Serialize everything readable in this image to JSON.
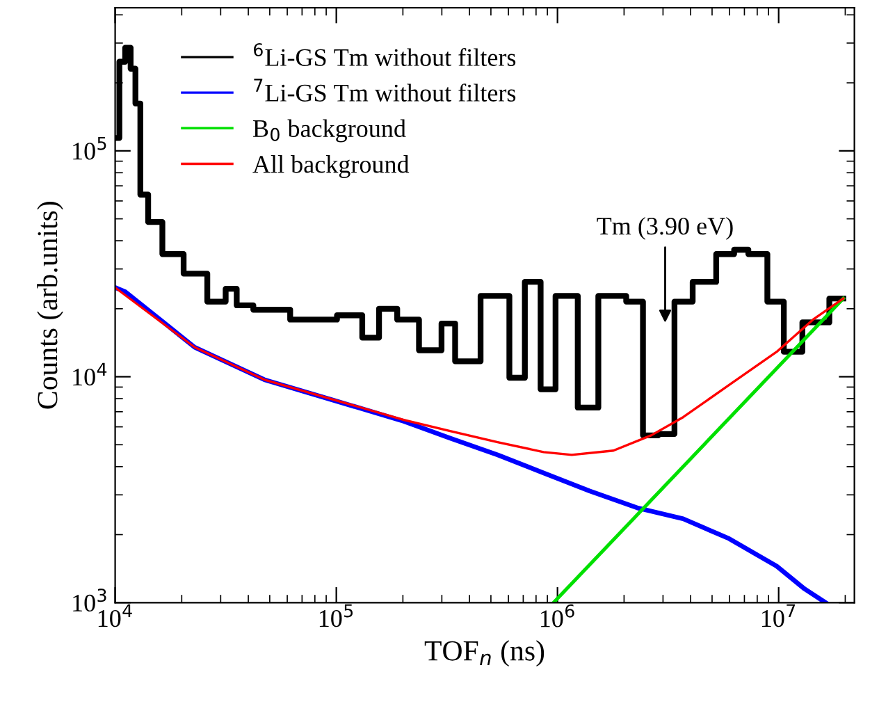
{
  "chart_data": {
    "type": "line",
    "xlabel": "TOF$_{n}$ (ns)",
    "ylabel": "Counts (arb.units)",
    "log": "xy",
    "grid": false,
    "legend": "top left",
    "marker": "none",
    "xlim": [
      10000,
      22000000
    ],
    "ylim": [
      1000,
      430000
    ],
    "xticks": [
      {
        "value": 10000,
        "label": "10$^{4}$"
      },
      {
        "value": 100000,
        "label": "10$^{5}$"
      },
      {
        "value": 1000000,
        "label": "10$^{6}$"
      },
      {
        "value": 10000000,
        "label": "10$^{7}$"
      }
    ],
    "yticks": [
      {
        "value": 1000,
        "label": "10$^{3}$"
      },
      {
        "value": 10000,
        "label": "10$^{4}$"
      },
      {
        "value": 100000,
        "label": "10$^{5}$"
      }
    ],
    "annotations": [
      "Tm (3.90 eV)"
    ],
    "series": [
      {
        "name": "$^{6}$Li-GS Tm without filters",
        "type": "step",
        "color": "#000000",
        "x": [
          10100,
          10800,
          11400,
          12100,
          12600,
          13400,
          14800,
          17900,
          22900,
          29300,
          33900,
          37000,
          47300,
          76400,
          125000,
          137000,
          175000,
          202000,
          271000,
          327000,
          362000,
          536000,
          676000,
          748000,
          930000,
          1030000,
          1440000,
          1620000,
          1870000,
          2220000,
          2650000,
          3060000,
          3700000,
          4470000,
          5970000,
          6610000,
          7980000,
          9800000,
          11300000,
          14300000,
          19600000
        ],
        "values": [
          114000,
          248000,
          286000,
          231000,
          162000,
          64000,
          48400,
          34900,
          28600,
          21500,
          24500,
          20700,
          19800,
          17900,
          18700,
          14900,
          20000,
          17900,
          13100,
          17200,
          11700,
          22800,
          9900,
          26300,
          8800,
          22800,
          7300,
          22800,
          22800,
          21500,
          5500,
          5580,
          21500,
          26300,
          34900,
          36500,
          34900,
          21500,
          12900,
          17400,
          22200
        ]
      },
      {
        "name": "$^{7}$Li-GS Tm without filters",
        "color": "#0000ff",
        "x": [
          10000,
          11100,
          22900,
          47300,
          98000,
          202000,
          327000,
          536000,
          865000,
          1400000,
          2290000,
          3700000,
          5970000,
          9800000,
          13100000,
          16300000
        ],
        "values": [
          24800,
          23800,
          13500,
          9700,
          7850,
          6350,
          5350,
          4510,
          3750,
          3120,
          2630,
          2350,
          1920,
          1450,
          1150,
          1000
        ]
      },
      {
        "name": "B$_{0}$ background",
        "color": "#00e000",
        "x": [
          960000,
          19600000
        ],
        "values": [
          1000,
          22200
        ]
      },
      {
        "name": "All background",
        "color": "#ff0000",
        "x": [
          10000,
          22900,
          47300,
          98000,
          202000,
          327000,
          536000,
          865000,
          1160000,
          1790000,
          2650000,
          3700000,
          5970000,
          9800000,
          14300000,
          19600000
        ],
        "values": [
          24800,
          13500,
          9700,
          7900,
          6440,
          5750,
          5130,
          4640,
          4510,
          4710,
          5500,
          6620,
          9200,
          12900,
          17900,
          22200
        ]
      }
    ]
  }
}
